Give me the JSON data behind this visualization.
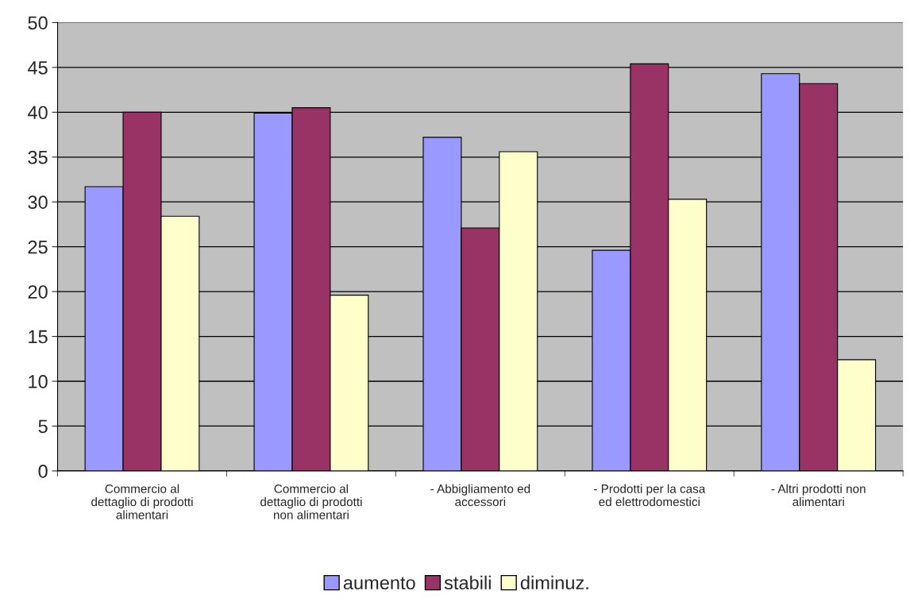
{
  "chart_data": {
    "type": "bar",
    "categories": [
      "Commercio al\ndettaglio di prodotti\nalimentari",
      "Commercio al\ndettaglio di prodotti\nnon alimentari",
      "- Abbigliamento ed\naccessori",
      "- Prodotti per la casa\ned elettrodomestici",
      "- Altri prodotti non\nalimentari"
    ],
    "series": [
      {
        "name": "aumento",
        "color": "#9999ff",
        "values": [
          31.7,
          39.9,
          37.2,
          24.6,
          44.3
        ]
      },
      {
        "name": "stabili",
        "color": "#993366",
        "values": [
          40.0,
          40.5,
          27.1,
          45.4,
          43.2
        ]
      },
      {
        "name": "diminuz.",
        "color": "#ffffcc",
        "values": [
          28.4,
          19.6,
          35.6,
          30.3,
          12.4
        ]
      }
    ],
    "ylim": [
      0,
      50
    ],
    "yticks": [
      0,
      5,
      10,
      15,
      20,
      25,
      30,
      35,
      40,
      45,
      50
    ],
    "grid": "y",
    "legend": "bottom"
  }
}
